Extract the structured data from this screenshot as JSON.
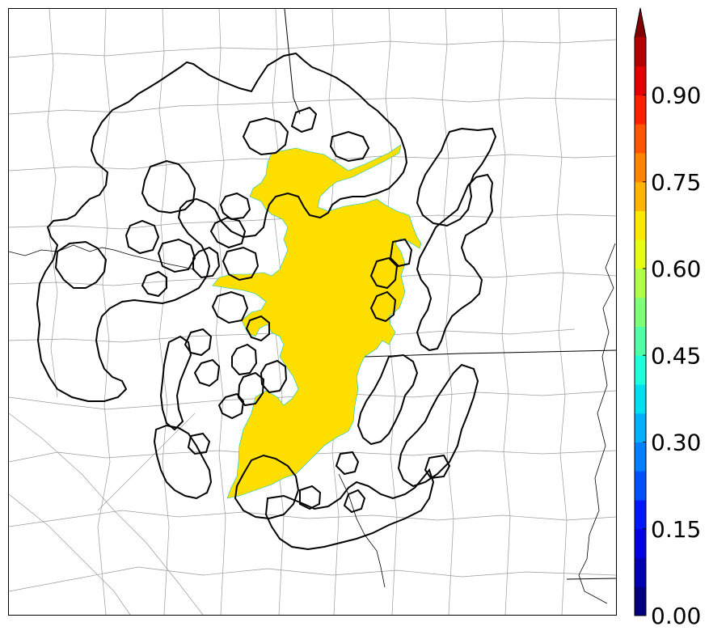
{
  "colorbar": {
    "ticks": [
      {
        "value": 0.0,
        "label": "0.00"
      },
      {
        "value": 0.15,
        "label": "0.15"
      },
      {
        "value": 0.3,
        "label": "0.30"
      },
      {
        "value": 0.45,
        "label": "0.45"
      },
      {
        "value": 0.6,
        "label": "0.60"
      },
      {
        "value": 0.75,
        "label": "0.75"
      },
      {
        "value": 0.9,
        "label": "0.90"
      }
    ],
    "range": [
      0,
      1
    ],
    "extend": "max",
    "levels": 20,
    "colors": [
      "#000080",
      "#0000b2",
      "#0000e4",
      "#0018ff",
      "#0050ff",
      "#0080ff",
      "#00b0ff",
      "#00e0f0",
      "#1cffda",
      "#50ffa8",
      "#80ff78",
      "#b0ff48",
      "#e4ff14",
      "#ffe800",
      "#ffb400",
      "#ff8400",
      "#ff5400",
      "#ff2000",
      "#e40000",
      "#b20000"
    ],
    "extend_color": "#800000"
  },
  "map": {
    "fill_color": "#ffdf00",
    "outline_color": "#000000",
    "county_color": "#9a9a9a"
  }
}
